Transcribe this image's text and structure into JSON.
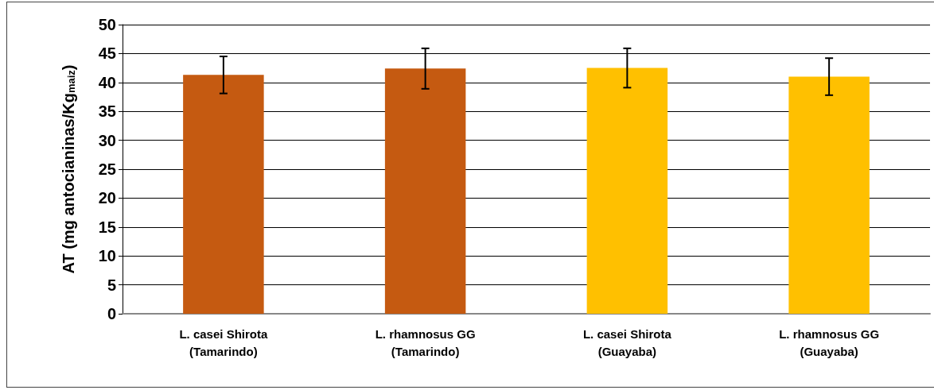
{
  "chart_data": {
    "type": "bar",
    "ylabel": "AT (mg antocianinas/Kg$_{maiz}$)",
    "categories": [
      "L. casei Shirota\n(Tamarindo)",
      "L. rhamnosus GG\n(Tamarindo)",
      "L. casei Shirota\n(Guayaba)",
      "L. rhamnosus GG\n(Guayaba)"
    ],
    "values": [
      41.3,
      42.4,
      42.5,
      41.0
    ],
    "colors": [
      "#c55a11",
      "#c55a11",
      "#ffc000",
      "#ffc000"
    ],
    "errors": [
      3.2,
      3.5,
      3.4,
      3.2
    ],
    "ylim": [
      0,
      50
    ],
    "yticks": [
      0,
      5,
      10,
      15,
      20,
      25,
      30,
      35,
      40,
      45,
      50
    ],
    "grid": "y"
  }
}
